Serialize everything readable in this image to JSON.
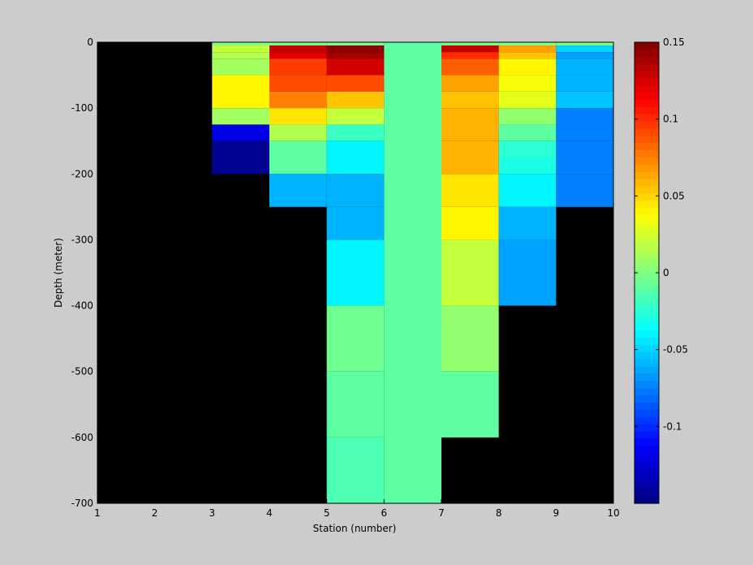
{
  "chart_data": {
    "type": "heatmap",
    "title": "",
    "xlabel": "Station (number)",
    "ylabel": "Depth (meter)",
    "xlim": [
      1,
      10
    ],
    "ylim": [
      -700,
      0
    ],
    "x_ticks": [
      1,
      2,
      3,
      4,
      5,
      6,
      7,
      8,
      9,
      10
    ],
    "y_ticks": [
      0,
      -100,
      -200,
      -300,
      -400,
      -500,
      -600,
      -700
    ],
    "x_tick_labels": [
      "1",
      "2",
      "3",
      "4",
      "5",
      "6",
      "7",
      "8",
      "9",
      "10"
    ],
    "y_tick_labels": [
      "0",
      "-100",
      "-200",
      "-300",
      "-400",
      "-500",
      "-600",
      "-700"
    ],
    "colorbar": {
      "colormap": "jet",
      "clim": [
        -0.15,
        0.15
      ],
      "ticks": [
        0.15,
        0.1,
        0.05,
        0,
        -0.05,
        -0.1
      ],
      "tick_labels": [
        "0.15",
        "0.1",
        "0.05",
        "0",
        "-0.05",
        "-0.1"
      ]
    },
    "background_color": "#000000",
    "figure_color": "#cccccc",
    "station_edges": [
      1,
      2,
      3,
      4,
      5,
      6,
      7,
      8,
      9,
      10
    ],
    "columns": [
      {
        "station_range": [
          3,
          4
        ],
        "cells": [
          [
            0,
            -5,
            0.0
          ],
          [
            -5,
            -15,
            0.02
          ],
          [
            -15,
            -25,
            0.015
          ],
          [
            -25,
            -50,
            0.01
          ],
          [
            -50,
            -100,
            0.04
          ],
          [
            -100,
            -125,
            0.01
          ],
          [
            -125,
            -150,
            -0.12
          ],
          [
            -150,
            -200,
            -0.145
          ]
        ]
      },
      {
        "station_range": [
          4,
          5
        ],
        "cells": [
          [
            0,
            -5,
            0.0
          ],
          [
            -5,
            -15,
            0.13
          ],
          [
            -15,
            -25,
            0.12
          ],
          [
            -25,
            -50,
            0.095
          ],
          [
            -50,
            -75,
            0.09
          ],
          [
            -75,
            -100,
            0.075
          ],
          [
            -100,
            -125,
            0.045
          ],
          [
            -125,
            -150,
            0.015
          ],
          [
            -150,
            -200,
            -0.01
          ],
          [
            -200,
            -250,
            -0.06
          ]
        ]
      },
      {
        "station_range": [
          5,
          6
        ],
        "cells": [
          [
            0,
            -5,
            0.0
          ],
          [
            -5,
            -15,
            0.145
          ],
          [
            -15,
            -25,
            0.14
          ],
          [
            -25,
            -50,
            0.125
          ],
          [
            -50,
            -75,
            0.09
          ],
          [
            -75,
            -100,
            0.055
          ],
          [
            -100,
            -125,
            0.02
          ],
          [
            -125,
            -150,
            -0.02
          ],
          [
            -150,
            -200,
            -0.04
          ],
          [
            -200,
            -250,
            -0.06
          ],
          [
            -250,
            -300,
            -0.06
          ],
          [
            -300,
            -400,
            -0.04
          ],
          [
            -400,
            -500,
            -0.005
          ],
          [
            -500,
            -600,
            -0.01
          ],
          [
            -600,
            -700,
            -0.015
          ]
        ]
      },
      {
        "station_range": [
          6,
          7
        ],
        "cells": [
          [
            0,
            -700,
            -0.01
          ]
        ]
      },
      {
        "station_range": [
          7,
          8
        ],
        "cells": [
          [
            0,
            -5,
            0.0
          ],
          [
            -5,
            -15,
            0.13
          ],
          [
            -15,
            -25,
            0.1
          ],
          [
            -25,
            -50,
            0.085
          ],
          [
            -50,
            -75,
            0.065
          ],
          [
            -75,
            -100,
            0.055
          ],
          [
            -100,
            -150,
            0.06
          ],
          [
            -150,
            -200,
            0.06
          ],
          [
            -200,
            -250,
            0.045
          ],
          [
            -250,
            -300,
            0.04
          ],
          [
            -300,
            -400,
            0.02
          ],
          [
            -400,
            -500,
            0.005
          ],
          [
            -500,
            -600,
            -0.01
          ]
        ]
      },
      {
        "station_range": [
          8,
          9
        ],
        "cells": [
          [
            0,
            -5,
            0.0
          ],
          [
            -5,
            -15,
            0.065
          ],
          [
            -15,
            -25,
            0.055
          ],
          [
            -25,
            -50,
            0.04
          ],
          [
            -50,
            -75,
            0.035
          ],
          [
            -75,
            -100,
            0.03
          ],
          [
            -100,
            -125,
            0.005
          ],
          [
            -125,
            -150,
            -0.01
          ],
          [
            -150,
            -175,
            -0.025
          ],
          [
            -175,
            -200,
            -0.03
          ],
          [
            -200,
            -250,
            -0.04
          ],
          [
            -250,
            -300,
            -0.06
          ],
          [
            -300,
            -400,
            -0.065
          ]
        ]
      },
      {
        "station_range": [
          9,
          10
        ],
        "cells": [
          [
            0,
            -5,
            0.0
          ],
          [
            -5,
            -15,
            -0.05
          ],
          [
            -15,
            -25,
            -0.065
          ],
          [
            -25,
            -50,
            -0.06
          ],
          [
            -50,
            -75,
            -0.06
          ],
          [
            -75,
            -100,
            -0.055
          ],
          [
            -100,
            -150,
            -0.075
          ],
          [
            -150,
            -200,
            -0.075
          ],
          [
            -200,
            -250,
            -0.075
          ]
        ]
      }
    ]
  }
}
